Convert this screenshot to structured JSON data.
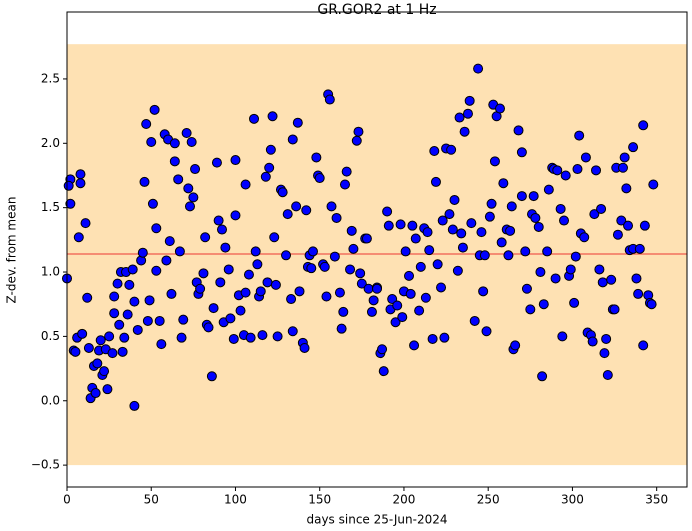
{
  "chart_data": {
    "type": "scatter",
    "title": "GR.GOR2 at 1 Hz",
    "x_label": "days since 25-Jun-2024",
    "y_label": "Z-dev. from mean",
    "xlim": [
      0,
      368
    ],
    "ylim": [
      -0.67,
      3.02
    ],
    "xticks": [
      0,
      50,
      100,
      150,
      200,
      250,
      300,
      350
    ],
    "yticks": [
      {
        "value": -0.5,
        "label": "−0.5"
      },
      {
        "value": 0,
        "label": "0.0"
      },
      {
        "value": 0.5,
        "label": "0.5"
      },
      {
        "value": 1,
        "label": "1.0"
      },
      {
        "value": 1.5,
        "label": "1.5"
      },
      {
        "value": 2,
        "label": "2.0"
      },
      {
        "value": 2.5,
        "label": "2.5"
      }
    ],
    "band": [
      -0.5,
      2.77
    ],
    "band_color": "#fee1b3",
    "mean": 1.14,
    "mean_color": "#f2705e",
    "series": [
      {
        "color": "#0000ff",
        "x": [
          0,
          2,
          1,
          2,
          4,
          5,
          7,
          8,
          8,
          6,
          9,
          11,
          12,
          13,
          14,
          15,
          16,
          17,
          18,
          19,
          20,
          21,
          22,
          23,
          24,
          25,
          27,
          28,
          28,
          30,
          31,
          32,
          33,
          34,
          35,
          36,
          37,
          39,
          40,
          40,
          42,
          44,
          45,
          46,
          47,
          48,
          49,
          50,
          51,
          52,
          53,
          53,
          55,
          56,
          58,
          59,
          60,
          61,
          62,
          64,
          64,
          66,
          67,
          68,
          69,
          71,
          72,
          73,
          74,
          75,
          76,
          77,
          78,
          79,
          81,
          82,
          83,
          84,
          86,
          87,
          89,
          90,
          91,
          92,
          93,
          94,
          96,
          97,
          99,
          100,
          100,
          102,
          103,
          105,
          106,
          106,
          108,
          109,
          111,
          112,
          113,
          114,
          115,
          116,
          118,
          119,
          120,
          121,
          122,
          123,
          124,
          125,
          127,
          128,
          130,
          131,
          133,
          134,
          134,
          136,
          137,
          138,
          140,
          141,
          142,
          143,
          144,
          145,
          146,
          148,
          149,
          150,
          152,
          153,
          154,
          155,
          156,
          157,
          159,
          160,
          162,
          163,
          164,
          165,
          166,
          168,
          169,
          170,
          172,
          173,
          174,
          175,
          177,
          178,
          179,
          181,
          182,
          184,
          184,
          186,
          187,
          188,
          190,
          191,
          192,
          193,
          195,
          196,
          198,
          199,
          200,
          201,
          203,
          204,
          205,
          206,
          207,
          209,
          210,
          212,
          213,
          214,
          215,
          217,
          218,
          219,
          220,
          222,
          223,
          224,
          225,
          227,
          228,
          229,
          230,
          232,
          233,
          234,
          235,
          236,
          238,
          239,
          240,
          242,
          244,
          245,
          246,
          247,
          248,
          249,
          251,
          252,
          253,
          254,
          255,
          257,
          258,
          259,
          261,
          262,
          263,
          264,
          265,
          266,
          268,
          270,
          270,
          272,
          273,
          275,
          276,
          277,
          278,
          280,
          281,
          282,
          283,
          285,
          286,
          288,
          289,
          290,
          291,
          293,
          294,
          295,
          296,
          298,
          299,
          301,
          302,
          303,
          304,
          305,
          307,
          308,
          309,
          311,
          312,
          313,
          314,
          316,
          317,
          318,
          319,
          320,
          321,
          323,
          324,
          325,
          326,
          327,
          329,
          330,
          331,
          332,
          333,
          334,
          336,
          336,
          338,
          339,
          340,
          342,
          342,
          343,
          345,
          346,
          347,
          348
        ],
        "values": [
          0.95,
          1.72,
          1.67,
          1.53,
          0.39,
          0.38,
          1.27,
          1.76,
          1.69,
          0.49,
          0.52,
          1.38,
          0.8,
          0.41,
          0.02,
          0.1,
          0.27,
          0.06,
          0.29,
          0.39,
          0.47,
          0.2,
          0.23,
          0.4,
          0.09,
          0.5,
          0.37,
          0.68,
          0.81,
          0.91,
          0.59,
          1.0,
          0.38,
          0.49,
          1.0,
          0.67,
          0.9,
          1.02,
          -0.04,
          0.77,
          0.55,
          1.09,
          1.15,
          1.7,
          2.15,
          0.62,
          0.78,
          2.01,
          1.53,
          2.26,
          1.34,
          1.01,
          0.62,
          0.44,
          2.07,
          1.09,
          2.03,
          1.24,
          0.83,
          2.0,
          1.86,
          1.72,
          1.16,
          0.49,
          0.63,
          2.08,
          1.65,
          1.51,
          2.01,
          1.58,
          1.8,
          0.92,
          0.83,
          0.87,
          0.99,
          1.27,
          0.59,
          0.57,
          0.19,
          0.72,
          1.85,
          1.4,
          0.92,
          1.33,
          0.61,
          1.19,
          1.02,
          0.64,
          0.48,
          1.87,
          1.44,
          0.82,
          0.7,
          0.51,
          0.84,
          1.68,
          0.98,
          0.49,
          2.19,
          1.16,
          1.06,
          0.81,
          0.85,
          0.51,
          1.74,
          0.92,
          1.81,
          1.95,
          2.21,
          1.27,
          0.9,
          0.5,
          1.64,
          1.62,
          1.13,
          1.45,
          0.79,
          0.54,
          2.03,
          1.51,
          2.16,
          0.85,
          0.45,
          0.41,
          1.48,
          1.04,
          1.13,
          1.03,
          1.16,
          1.89,
          1.75,
          1.73,
          1.06,
          1.04,
          0.81,
          2.38,
          2.34,
          1.51,
          1.12,
          1.42,
          0.84,
          0.56,
          0.69,
          1.68,
          1.78,
          1.02,
          1.32,
          1.18,
          2.02,
          2.09,
          0.99,
          0.91,
          1.26,
          1.26,
          0.87,
          0.69,
          0.78,
          0.88,
          0.87,
          0.37,
          0.4,
          0.23,
          1.47,
          1.36,
          0.71,
          0.79,
          0.61,
          0.74,
          1.37,
          0.65,
          0.85,
          1.16,
          0.97,
          0.83,
          1.36,
          0.43,
          1.26,
          0.7,
          1.04,
          1.34,
          0.8,
          1.31,
          1.17,
          0.48,
          1.94,
          1.7,
          1.06,
          0.88,
          1.4,
          0.49,
          1.96,
          1.45,
          1.95,
          1.33,
          1.56,
          1.01,
          2.2,
          1.3,
          1.19,
          2.09,
          2.23,
          2.33,
          1.38,
          0.62,
          2.58,
          1.13,
          1.31,
          0.85,
          1.13,
          0.54,
          1.43,
          1.53,
          2.3,
          1.86,
          2.21,
          2.27,
          1.23,
          1.69,
          1.33,
          1.13,
          1.32,
          1.51,
          0.4,
          0.43,
          2.1,
          1.59,
          1.93,
          1.16,
          0.87,
          0.71,
          1.45,
          1.59,
          1.42,
          1.35,
          1.0,
          0.19,
          0.75,
          1.16,
          1.64,
          1.81,
          1.8,
          0.95,
          1.79,
          1.49,
          0.5,
          1.4,
          1.75,
          0.97,
          1.02,
          0.76,
          1.12,
          1.8,
          2.06,
          1.3,
          1.27,
          1.89,
          0.53,
          0.51,
          0.46,
          1.45,
          1.79,
          1.02,
          1.49,
          0.92,
          0.37,
          0.48,
          0.2,
          0.94,
          0.71,
          0.71,
          1.81,
          1.29,
          1.4,
          1.81,
          1.89,
          1.65,
          1.36,
          1.17,
          1.97,
          1.18,
          0.95,
          0.83,
          1.18,
          2.14,
          0.43,
          1.36,
          0.82,
          0.76,
          0.75,
          1.68
        ]
      }
    ]
  }
}
